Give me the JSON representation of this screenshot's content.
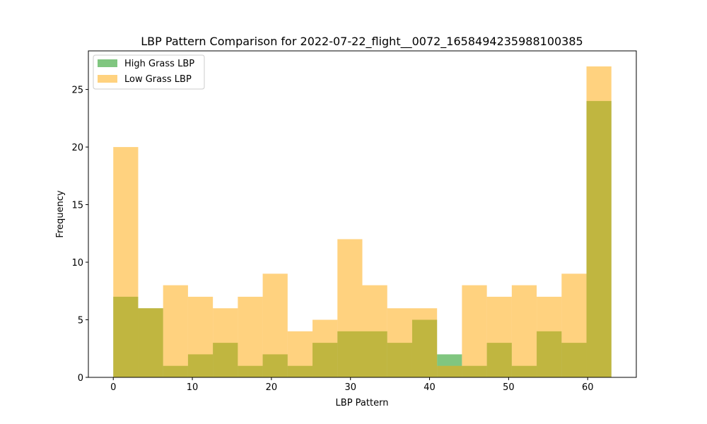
{
  "chart_data": {
    "type": "bar",
    "title": "LBP Pattern Comparison for 2022-07-22_flight__0072_1658494235988100385",
    "xlabel": "LBP Pattern",
    "ylabel": "Frequency",
    "xlim": [
      -3.15,
      66.15
    ],
    "ylim": [
      0,
      28.35
    ],
    "xticks": [
      0,
      10,
      20,
      30,
      40,
      50,
      60
    ],
    "yticks": [
      0,
      5,
      10,
      15,
      20,
      25
    ],
    "bin_edges": [
      0,
      3.15,
      6.3,
      9.45,
      12.6,
      15.75,
      18.9,
      22.05,
      25.2,
      28.35,
      31.5,
      34.65,
      37.8,
      40.95,
      44.1,
      47.25,
      50.4,
      53.55,
      56.7,
      59.85,
      63
    ],
    "series": [
      {
        "name": "High Grass LBP",
        "color": "#2ca02c",
        "alpha": 0.6,
        "values": [
          7,
          6,
          1,
          2,
          3,
          1,
          2,
          1,
          3,
          4,
          4,
          3,
          5,
          2,
          1,
          3,
          1,
          4,
          3,
          24
        ]
      },
      {
        "name": "Low Grass LBP",
        "color": "#ffa500",
        "alpha": 0.5,
        "values": [
          20,
          6,
          8,
          7,
          6,
          7,
          9,
          4,
          5,
          12,
          8,
          6,
          6,
          1,
          8,
          7,
          8,
          7,
          9,
          27
        ]
      }
    ],
    "legend_position": "upper-left",
    "grid": false
  }
}
